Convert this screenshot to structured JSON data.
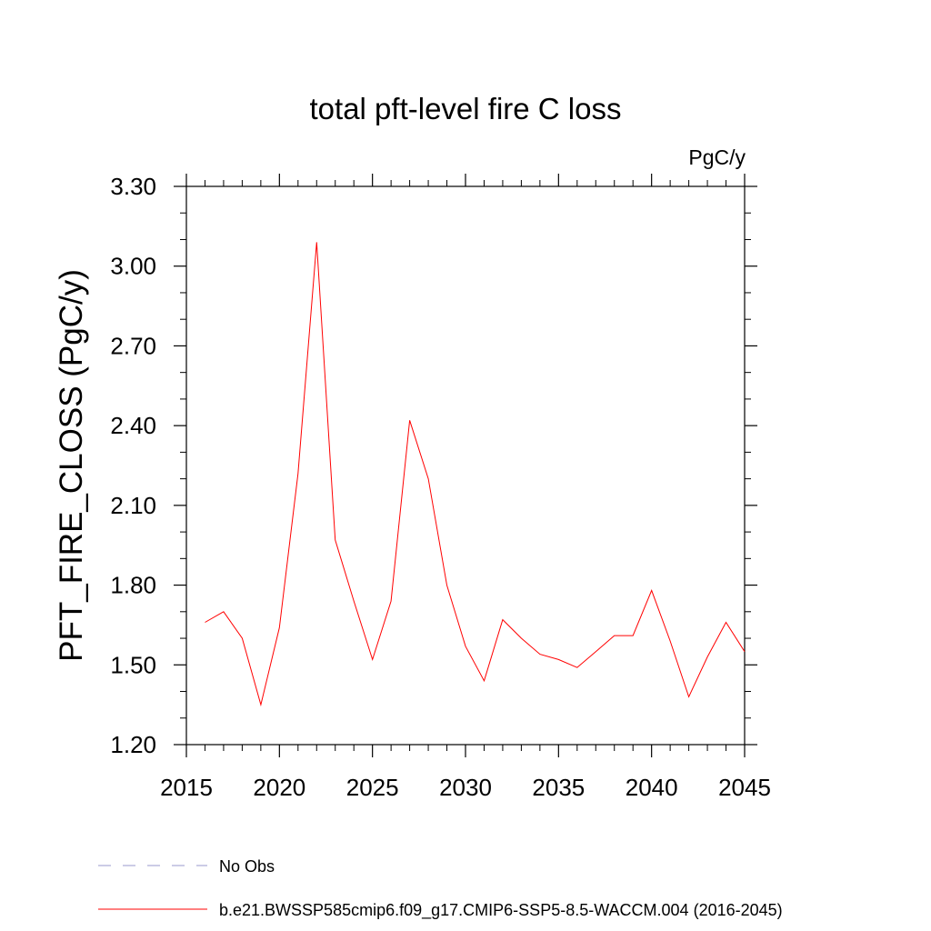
{
  "chart_data": {
    "type": "line",
    "title": "total pft-level fire C loss",
    "units": "PgC/y",
    "ylabel": "PFT_FIRE_CLOSS  (PgC/y)",
    "xlim": [
      2015,
      2045
    ],
    "ylim": [
      1.2,
      3.3
    ],
    "x_ticks": [
      2015,
      2020,
      2025,
      2030,
      2035,
      2040,
      2045
    ],
    "x_tick_labels": [
      "2015",
      "2020",
      "2025",
      "2030",
      "2035",
      "2040",
      "2045"
    ],
    "y_ticks": [
      1.2,
      1.5,
      1.8,
      2.1,
      2.4,
      2.7,
      3.0,
      3.3
    ],
    "y_tick_labels": [
      "1.20",
      "1.50",
      "1.80",
      "2.10",
      "2.40",
      "2.70",
      "3.00",
      "3.30"
    ],
    "series": [
      {
        "name": "b.e21.BWSSP585cmip6.f09_g17.CMIP6-SSP5-8.5-WACCM.004 (2016-2045)",
        "color": "#ff0000",
        "style": "solid",
        "x": [
          2016,
          2017,
          2018,
          2019,
          2020,
          2021,
          2022,
          2023,
          2024,
          2025,
          2026,
          2027,
          2028,
          2029,
          2030,
          2031,
          2032,
          2033,
          2034,
          2035,
          2036,
          2037,
          2038,
          2039,
          2040,
          2041,
          2042,
          2043,
          2044,
          2045
        ],
        "y": [
          1.66,
          1.7,
          1.6,
          1.35,
          1.64,
          2.22,
          3.09,
          1.97,
          1.74,
          1.52,
          1.74,
          2.42,
          2.2,
          1.8,
          1.57,
          1.44,
          1.67,
          1.6,
          1.54,
          1.52,
          1.49,
          1.55,
          1.61,
          1.61,
          1.78,
          1.59,
          1.38,
          1.53,
          1.66,
          1.55
        ]
      }
    ],
    "legend": [
      {
        "label": "No Obs",
        "color": "#9999cc",
        "style": "dashed"
      },
      {
        "label": "b.e21.BWSSP585cmip6.f09_g17.CMIP6-SSP5-8.5-WACCM.004 (2016-2045)",
        "color": "#ff0000",
        "style": "solid"
      }
    ],
    "legend_placement": "bottom"
  }
}
